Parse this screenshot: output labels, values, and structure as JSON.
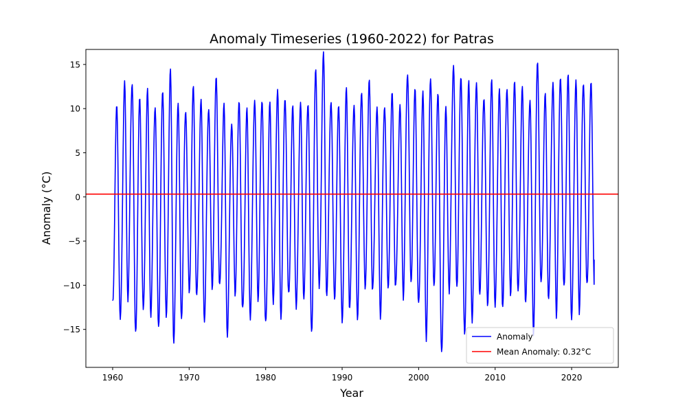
{
  "chart_data": {
    "type": "line",
    "title": "Anomaly Timeseries (1960-2022) for Patras",
    "xlabel": "Year",
    "ylabel": "Anomaly ($^\\circ$C)",
    "ylabel_display": "Anomaly (°C)",
    "xlim": [
      1956.5,
      2026.1
    ],
    "ylim": [
      -19.3,
      16.7
    ],
    "xticks": [
      1960,
      1970,
      1980,
      1990,
      2000,
      2010,
      2020
    ],
    "yticks": [
      -15,
      -10,
      -5,
      0,
      5,
      10,
      15
    ],
    "grid": false,
    "legend_position": "lower-right",
    "mean_anomaly": 0.32,
    "series": [
      {
        "name": "Anomaly",
        "color": "#0000ff",
        "x_start": 1960.0,
        "x_end": 2022.95,
        "annual_peaks": [
          10.8,
          12.6,
          12.7,
          12.1,
          11.2,
          10.2,
          13.1,
          13.1,
          10.8,
          10.9,
          11.1,
          11.3,
          11.0,
          12.3,
          10.9,
          8.9,
          9.9,
          10.4,
          11.0,
          10.5,
          11.1,
          11.6,
          11.4,
          10.7,
          9.6,
          11.3,
          14.8,
          15.0,
          11.9,
          10.6,
          10.9,
          11.6,
          12.0,
          12.0,
          11.2,
          10.2,
          11.0,
          11.1,
          13.7,
          12.0,
          12.2,
          13.0,
          12.1,
          10.0,
          14.3,
          14.6,
          12.6,
          12.2,
          12.6,
          12.5,
          11.5,
          13.8,
          12.2,
          11.9,
          12.3,
          14.5,
          11.4,
          13.8,
          12.9,
          13.9,
          13.4,
          12.5,
          13.4
        ],
        "annual_troughs": [
          -12.5,
          -13.5,
          -11.9,
          -15.3,
          -12.5,
          -14.2,
          -14.1,
          -13.5,
          -17.6,
          -12.7,
          -10.8,
          -12.4,
          -12.8,
          -10.5,
          -11.2,
          -14.5,
          -11.3,
          -13.6,
          -12.8,
          -12.0,
          -14.7,
          -11.5,
          -14.1,
          -10.8,
          -12.6,
          -11.9,
          -14.6,
          -10.8,
          -11.6,
          -10.4,
          -15.1,
          -13.0,
          -12.4,
          -11.5,
          -10.8,
          -12.3,
          -11.4,
          -10.3,
          -10.4,
          -10.5,
          -12.1,
          -15.6,
          -10.6,
          -17.4,
          -10.9,
          -10.3,
          -15.1,
          -14.9,
          -10.8,
          -11.6,
          -13.7,
          -11.9,
          -10.3,
          -12.2,
          -11.2,
          -14.8,
          -11.2,
          -10.8,
          -13.0,
          -11.3,
          -13.3,
          -12.9,
          -10.5
        ],
        "last_value": -7.1
      },
      {
        "name": "Mean Anomaly: 0.32$^\\circ$C",
        "name_display": "Mean Anomaly: 0.32°C",
        "color": "#ff0000",
        "value": 0.32
      }
    ]
  }
}
